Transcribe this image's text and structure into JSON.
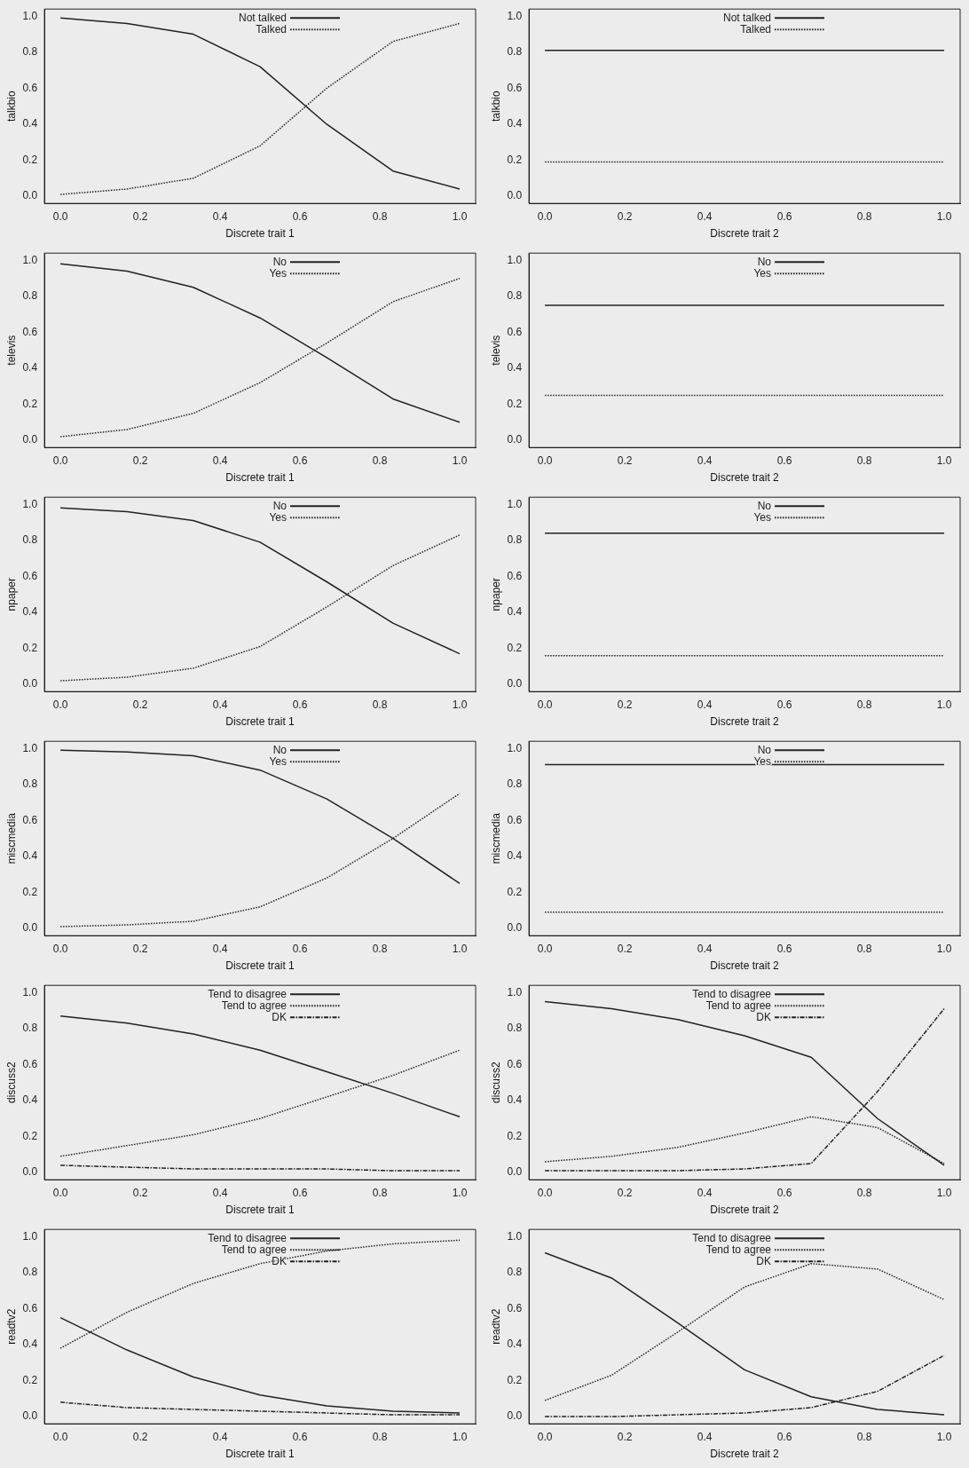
{
  "chart_data": [
    {
      "type": "line",
      "xlabel": "Discrete trait 1",
      "ylabel": "talkbio",
      "x": [
        0,
        0.167,
        0.333,
        0.5,
        0.667,
        0.833,
        1
      ],
      "xlim": [
        -0.04,
        1.04
      ],
      "ylim": [
        -0.04,
        1.04
      ],
      "xticks": [
        {
          "value": 0,
          "label": "0.0"
        },
        {
          "value": 0.2,
          "label": "0.2"
        },
        {
          "value": 0.4,
          "label": "0.4"
        },
        {
          "value": 0.6,
          "label": "0.6"
        },
        {
          "value": 0.8,
          "label": "0.8"
        },
        {
          "value": 1,
          "label": "1.0"
        }
      ],
      "yticks": [
        {
          "value": 0,
          "label": "0.0"
        },
        {
          "value": 0.2,
          "label": "0.2"
        },
        {
          "value": 0.4,
          "label": "0.4"
        },
        {
          "value": 0.6,
          "label": "0.6"
        },
        {
          "value": 0.8,
          "label": "0.8"
        },
        {
          "value": 1,
          "label": "1.0"
        }
      ],
      "legend": "top",
      "marker": "none",
      "series": [
        {
          "name": "Not talked",
          "color": "#222222",
          "line_style": "solid",
          "values": [
            0.99,
            0.96,
            0.9,
            0.72,
            0.4,
            0.14,
            0.04
          ]
        },
        {
          "name": "Talked",
          "color": "#222222",
          "line_style": "dotted",
          "values": [
            0.01,
            0.04,
            0.1,
            0.28,
            0.6,
            0.86,
            0.96
          ]
        }
      ]
    },
    {
      "type": "line",
      "xlabel": "Discrete trait 2",
      "ylabel": "talkbio",
      "x": [
        0,
        0.167,
        0.333,
        0.5,
        0.667,
        0.833,
        1
      ],
      "xlim": [
        -0.04,
        1.04
      ],
      "ylim": [
        -0.04,
        1.04
      ],
      "xticks": [
        {
          "value": 0,
          "label": "0.0"
        },
        {
          "value": 0.2,
          "label": "0.2"
        },
        {
          "value": 0.4,
          "label": "0.4"
        },
        {
          "value": 0.6,
          "label": "0.6"
        },
        {
          "value": 0.8,
          "label": "0.8"
        },
        {
          "value": 1,
          "label": "1.0"
        }
      ],
      "yticks": [
        {
          "value": 0,
          "label": "0.0"
        },
        {
          "value": 0.2,
          "label": "0.2"
        },
        {
          "value": 0.4,
          "label": "0.4"
        },
        {
          "value": 0.6,
          "label": "0.6"
        },
        {
          "value": 0.8,
          "label": "0.8"
        },
        {
          "value": 1,
          "label": "1.0"
        }
      ],
      "legend": "top",
      "marker": "none",
      "series": [
        {
          "name": "Not talked",
          "color": "#222222",
          "line_style": "solid",
          "values": [
            0.81,
            0.81,
            0.81,
            0.81,
            0.81,
            0.81,
            0.81
          ]
        },
        {
          "name": "Talked",
          "color": "#222222",
          "line_style": "dotted",
          "values": [
            0.19,
            0.19,
            0.19,
            0.19,
            0.19,
            0.19,
            0.19
          ]
        }
      ]
    },
    {
      "type": "line",
      "xlabel": "Discrete trait 1",
      "ylabel": "televis",
      "x": [
        0,
        0.167,
        0.333,
        0.5,
        0.667,
        0.833,
        1
      ],
      "xlim": [
        -0.04,
        1.04
      ],
      "ylim": [
        -0.04,
        1.04
      ],
      "xticks": [
        {
          "value": 0,
          "label": "0.0"
        },
        {
          "value": 0.2,
          "label": "0.2"
        },
        {
          "value": 0.4,
          "label": "0.4"
        },
        {
          "value": 0.6,
          "label": "0.6"
        },
        {
          "value": 0.8,
          "label": "0.8"
        },
        {
          "value": 1,
          "label": "1.0"
        }
      ],
      "yticks": [
        {
          "value": 0,
          "label": "0.0"
        },
        {
          "value": 0.2,
          "label": "0.2"
        },
        {
          "value": 0.4,
          "label": "0.4"
        },
        {
          "value": 0.6,
          "label": "0.6"
        },
        {
          "value": 0.8,
          "label": "0.8"
        },
        {
          "value": 1,
          "label": "1.0"
        }
      ],
      "legend": "top",
      "marker": "none",
      "series": [
        {
          "name": "No",
          "color": "#222222",
          "line_style": "solid",
          "values": [
            0.98,
            0.94,
            0.85,
            0.68,
            0.46,
            0.23,
            0.1
          ]
        },
        {
          "name": "Yes",
          "color": "#222222",
          "line_style": "dotted",
          "values": [
            0.02,
            0.06,
            0.15,
            0.32,
            0.54,
            0.77,
            0.9
          ]
        }
      ]
    },
    {
      "type": "line",
      "xlabel": "Discrete trait 2",
      "ylabel": "televis",
      "x": [
        0,
        0.167,
        0.333,
        0.5,
        0.667,
        0.833,
        1
      ],
      "xlim": [
        -0.04,
        1.04
      ],
      "ylim": [
        -0.04,
        1.04
      ],
      "xticks": [
        {
          "value": 0,
          "label": "0.0"
        },
        {
          "value": 0.2,
          "label": "0.2"
        },
        {
          "value": 0.4,
          "label": "0.4"
        },
        {
          "value": 0.6,
          "label": "0.6"
        },
        {
          "value": 0.8,
          "label": "0.8"
        },
        {
          "value": 1,
          "label": "1.0"
        }
      ],
      "yticks": [
        {
          "value": 0,
          "label": "0.0"
        },
        {
          "value": 0.2,
          "label": "0.2"
        },
        {
          "value": 0.4,
          "label": "0.4"
        },
        {
          "value": 0.6,
          "label": "0.6"
        },
        {
          "value": 0.8,
          "label": "0.8"
        },
        {
          "value": 1,
          "label": "1.0"
        }
      ],
      "legend": "top",
      "marker": "none",
      "series": [
        {
          "name": "No",
          "color": "#222222",
          "line_style": "solid",
          "values": [
            0.75,
            0.75,
            0.75,
            0.75,
            0.75,
            0.75,
            0.75
          ]
        },
        {
          "name": "Yes",
          "color": "#222222",
          "line_style": "dotted",
          "values": [
            0.25,
            0.25,
            0.25,
            0.25,
            0.25,
            0.25,
            0.25
          ]
        }
      ]
    },
    {
      "type": "line",
      "xlabel": "Discrete trait 1",
      "ylabel": "npaper",
      "x": [
        0,
        0.167,
        0.333,
        0.5,
        0.667,
        0.833,
        1
      ],
      "xlim": [
        -0.04,
        1.04
      ],
      "ylim": [
        -0.04,
        1.04
      ],
      "xticks": [
        {
          "value": 0,
          "label": "0.0"
        },
        {
          "value": 0.2,
          "label": "0.2"
        },
        {
          "value": 0.4,
          "label": "0.4"
        },
        {
          "value": 0.6,
          "label": "0.6"
        },
        {
          "value": 0.8,
          "label": "0.8"
        },
        {
          "value": 1,
          "label": "1.0"
        }
      ],
      "yticks": [
        {
          "value": 0,
          "label": "0.0"
        },
        {
          "value": 0.2,
          "label": "0.2"
        },
        {
          "value": 0.4,
          "label": "0.4"
        },
        {
          "value": 0.6,
          "label": "0.6"
        },
        {
          "value": 0.8,
          "label": "0.8"
        },
        {
          "value": 1,
          "label": "1.0"
        }
      ],
      "legend": "top",
      "marker": "none",
      "series": [
        {
          "name": "No",
          "color": "#222222",
          "line_style": "solid",
          "values": [
            0.98,
            0.96,
            0.91,
            0.79,
            0.57,
            0.34,
            0.17
          ]
        },
        {
          "name": "Yes",
          "color": "#222222",
          "line_style": "dotted",
          "values": [
            0.02,
            0.04,
            0.09,
            0.21,
            0.43,
            0.66,
            0.83
          ]
        }
      ]
    },
    {
      "type": "line",
      "xlabel": "Discrete trait 2",
      "ylabel": "npaper",
      "x": [
        0,
        0.167,
        0.333,
        0.5,
        0.667,
        0.833,
        1
      ],
      "xlim": [
        -0.04,
        1.04
      ],
      "ylim": [
        -0.04,
        1.04
      ],
      "xticks": [
        {
          "value": 0,
          "label": "0.0"
        },
        {
          "value": 0.2,
          "label": "0.2"
        },
        {
          "value": 0.4,
          "label": "0.4"
        },
        {
          "value": 0.6,
          "label": "0.6"
        },
        {
          "value": 0.8,
          "label": "0.8"
        },
        {
          "value": 1,
          "label": "1.0"
        }
      ],
      "yticks": [
        {
          "value": 0,
          "label": "0.0"
        },
        {
          "value": 0.2,
          "label": "0.2"
        },
        {
          "value": 0.4,
          "label": "0.4"
        },
        {
          "value": 0.6,
          "label": "0.6"
        },
        {
          "value": 0.8,
          "label": "0.8"
        },
        {
          "value": 1,
          "label": "1.0"
        }
      ],
      "legend": "top",
      "marker": "none",
      "series": [
        {
          "name": "No",
          "color": "#222222",
          "line_style": "solid",
          "values": [
            0.84,
            0.84,
            0.84,
            0.84,
            0.84,
            0.84,
            0.84
          ]
        },
        {
          "name": "Yes",
          "color": "#222222",
          "line_style": "dotted",
          "values": [
            0.16,
            0.16,
            0.16,
            0.16,
            0.16,
            0.16,
            0.16
          ]
        }
      ]
    },
    {
      "type": "line",
      "xlabel": "Discrete trait 1",
      "ylabel": "miscmedia",
      "x": [
        0,
        0.167,
        0.333,
        0.5,
        0.667,
        0.833,
        1
      ],
      "xlim": [
        -0.04,
        1.04
      ],
      "ylim": [
        -0.04,
        1.04
      ],
      "xticks": [
        {
          "value": 0,
          "label": "0.0"
        },
        {
          "value": 0.2,
          "label": "0.2"
        },
        {
          "value": 0.4,
          "label": "0.4"
        },
        {
          "value": 0.6,
          "label": "0.6"
        },
        {
          "value": 0.8,
          "label": "0.8"
        },
        {
          "value": 1,
          "label": "1.0"
        }
      ],
      "yticks": [
        {
          "value": 0,
          "label": "0.0"
        },
        {
          "value": 0.2,
          "label": "0.2"
        },
        {
          "value": 0.4,
          "label": "0.4"
        },
        {
          "value": 0.6,
          "label": "0.6"
        },
        {
          "value": 0.8,
          "label": "0.8"
        },
        {
          "value": 1,
          "label": "1.0"
        }
      ],
      "legend": "top",
      "marker": "none",
      "series": [
        {
          "name": "No",
          "color": "#222222",
          "line_style": "solid",
          "values": [
            0.99,
            0.98,
            0.96,
            0.88,
            0.72,
            0.5,
            0.25
          ]
        },
        {
          "name": "Yes",
          "color": "#222222",
          "line_style": "dotted",
          "values": [
            0.01,
            0.02,
            0.04,
            0.12,
            0.28,
            0.5,
            0.75
          ]
        }
      ]
    },
    {
      "type": "line",
      "xlabel": "Discrete trait 2",
      "ylabel": "miscmedia",
      "x": [
        0,
        0.167,
        0.333,
        0.5,
        0.667,
        0.833,
        1
      ],
      "xlim": [
        -0.04,
        1.04
      ],
      "ylim": [
        -0.04,
        1.04
      ],
      "xticks": [
        {
          "value": 0,
          "label": "0.0"
        },
        {
          "value": 0.2,
          "label": "0.2"
        },
        {
          "value": 0.4,
          "label": "0.4"
        },
        {
          "value": 0.6,
          "label": "0.6"
        },
        {
          "value": 0.8,
          "label": "0.8"
        },
        {
          "value": 1,
          "label": "1.0"
        }
      ],
      "yticks": [
        {
          "value": 0,
          "label": "0.0"
        },
        {
          "value": 0.2,
          "label": "0.2"
        },
        {
          "value": 0.4,
          "label": "0.4"
        },
        {
          "value": 0.6,
          "label": "0.6"
        },
        {
          "value": 0.8,
          "label": "0.8"
        },
        {
          "value": 1,
          "label": "1.0"
        }
      ],
      "legend": "top",
      "marker": "none",
      "series": [
        {
          "name": "No",
          "color": "#222222",
          "line_style": "solid",
          "values": [
            0.91,
            0.91,
            0.91,
            0.91,
            0.91,
            0.91,
            0.91
          ]
        },
        {
          "name": "Yes",
          "color": "#222222",
          "line_style": "dotted",
          "values": [
            0.09,
            0.09,
            0.09,
            0.09,
            0.09,
            0.09,
            0.09
          ]
        }
      ]
    },
    {
      "type": "line",
      "xlabel": "Discrete trait 1",
      "ylabel": "discuss2",
      "x": [
        0,
        0.167,
        0.333,
        0.5,
        0.667,
        0.833,
        1
      ],
      "xlim": [
        -0.04,
        1.04
      ],
      "ylim": [
        -0.04,
        1.04
      ],
      "xticks": [
        {
          "value": 0,
          "label": "0.0"
        },
        {
          "value": 0.2,
          "label": "0.2"
        },
        {
          "value": 0.4,
          "label": "0.4"
        },
        {
          "value": 0.6,
          "label": "0.6"
        },
        {
          "value": 0.8,
          "label": "0.8"
        },
        {
          "value": 1,
          "label": "1.0"
        }
      ],
      "yticks": [
        {
          "value": 0,
          "label": "0.0"
        },
        {
          "value": 0.2,
          "label": "0.2"
        },
        {
          "value": 0.4,
          "label": "0.4"
        },
        {
          "value": 0.6,
          "label": "0.6"
        },
        {
          "value": 0.8,
          "label": "0.8"
        },
        {
          "value": 1,
          "label": "1.0"
        }
      ],
      "legend": "top",
      "marker": "none",
      "series": [
        {
          "name": "Tend to disagree",
          "color": "#222222",
          "line_style": "solid",
          "values": [
            0.87,
            0.83,
            0.77,
            0.68,
            0.56,
            0.44,
            0.31
          ]
        },
        {
          "name": "Tend to agree",
          "color": "#222222",
          "line_style": "dotted",
          "values": [
            0.09,
            0.15,
            0.21,
            0.3,
            0.42,
            0.54,
            0.68
          ]
        },
        {
          "name": "DK",
          "color": "#222222",
          "line_style": "dashdot",
          "values": [
            0.04,
            0.03,
            0.02,
            0.02,
            0.02,
            0.01,
            0.01
          ]
        }
      ]
    },
    {
      "type": "line",
      "xlabel": "Discrete trait 2",
      "ylabel": "discuss2",
      "x": [
        0,
        0.167,
        0.333,
        0.5,
        0.667,
        0.833,
        1
      ],
      "xlim": [
        -0.04,
        1.04
      ],
      "ylim": [
        -0.04,
        1.04
      ],
      "xticks": [
        {
          "value": 0,
          "label": "0.0"
        },
        {
          "value": 0.2,
          "label": "0.2"
        },
        {
          "value": 0.4,
          "label": "0.4"
        },
        {
          "value": 0.6,
          "label": "0.6"
        },
        {
          "value": 0.8,
          "label": "0.8"
        },
        {
          "value": 1,
          "label": "1.0"
        }
      ],
      "yticks": [
        {
          "value": 0,
          "label": "0.0"
        },
        {
          "value": 0.2,
          "label": "0.2"
        },
        {
          "value": 0.4,
          "label": "0.4"
        },
        {
          "value": 0.6,
          "label": "0.6"
        },
        {
          "value": 0.8,
          "label": "0.8"
        },
        {
          "value": 1,
          "label": "1.0"
        }
      ],
      "legend": "top",
      "marker": "none",
      "series": [
        {
          "name": "Tend to disagree",
          "color": "#222222",
          "line_style": "solid",
          "values": [
            0.95,
            0.91,
            0.85,
            0.76,
            0.64,
            0.3,
            0.04
          ]
        },
        {
          "name": "Tend to agree",
          "color": "#222222",
          "line_style": "dotted",
          "values": [
            0.06,
            0.09,
            0.14,
            0.22,
            0.31,
            0.25,
            0.05
          ]
        },
        {
          "name": "DK",
          "color": "#222222",
          "line_style": "dashdot",
          "values": [
            0.01,
            0.01,
            0.01,
            0.02,
            0.05,
            0.45,
            0.91
          ]
        }
      ]
    },
    {
      "type": "line",
      "xlabel": "Discrete trait 1",
      "ylabel": "readtv2",
      "x": [
        0,
        0.167,
        0.333,
        0.5,
        0.667,
        0.833,
        1
      ],
      "xlim": [
        -0.04,
        1.04
      ],
      "ylim": [
        -0.04,
        1.04
      ],
      "xticks": [
        {
          "value": 0,
          "label": "0.0"
        },
        {
          "value": 0.2,
          "label": "0.2"
        },
        {
          "value": 0.4,
          "label": "0.4"
        },
        {
          "value": 0.6,
          "label": "0.6"
        },
        {
          "value": 0.8,
          "label": "0.8"
        },
        {
          "value": 1,
          "label": "1.0"
        }
      ],
      "yticks": [
        {
          "value": 0,
          "label": "0.0"
        },
        {
          "value": 0.2,
          "label": "0.2"
        },
        {
          "value": 0.4,
          "label": "0.4"
        },
        {
          "value": 0.6,
          "label": "0.6"
        },
        {
          "value": 0.8,
          "label": "0.8"
        },
        {
          "value": 1,
          "label": "1.0"
        }
      ],
      "legend": "top",
      "marker": "none",
      "series": [
        {
          "name": "Tend to disagree",
          "color": "#222222",
          "line_style": "solid",
          "values": [
            0.55,
            0.37,
            0.22,
            0.12,
            0.06,
            0.03,
            0.02
          ]
        },
        {
          "name": "Tend to agree",
          "color": "#222222",
          "line_style": "dotted",
          "values": [
            0.38,
            0.58,
            0.74,
            0.85,
            0.92,
            0.96,
            0.98
          ]
        },
        {
          "name": "DK",
          "color": "#222222",
          "line_style": "dashdot",
          "values": [
            0.08,
            0.05,
            0.04,
            0.03,
            0.02,
            0.01,
            0.01
          ]
        }
      ]
    },
    {
      "type": "line",
      "xlabel": "Discrete trait 2",
      "ylabel": "readtv2",
      "x": [
        0,
        0.167,
        0.333,
        0.5,
        0.667,
        0.833,
        1
      ],
      "xlim": [
        -0.04,
        1.04
      ],
      "ylim": [
        -0.04,
        1.04
      ],
      "xticks": [
        {
          "value": 0,
          "label": "0.0"
        },
        {
          "value": 0.2,
          "label": "0.2"
        },
        {
          "value": 0.4,
          "label": "0.4"
        },
        {
          "value": 0.6,
          "label": "0.6"
        },
        {
          "value": 0.8,
          "label": "0.8"
        },
        {
          "value": 1,
          "label": "1.0"
        }
      ],
      "yticks": [
        {
          "value": 0,
          "label": "0.0"
        },
        {
          "value": 0.2,
          "label": "0.2"
        },
        {
          "value": 0.4,
          "label": "0.4"
        },
        {
          "value": 0.6,
          "label": "0.6"
        },
        {
          "value": 0.8,
          "label": "0.8"
        },
        {
          "value": 1,
          "label": "1.0"
        }
      ],
      "legend": "top",
      "marker": "none",
      "series": [
        {
          "name": "Tend to disagree",
          "color": "#222222",
          "line_style": "solid",
          "values": [
            0.91,
            0.77,
            0.52,
            0.26,
            0.11,
            0.04,
            0.01
          ]
        },
        {
          "name": "Tend to agree",
          "color": "#222222",
          "line_style": "dotted",
          "values": [
            0.09,
            0.23,
            0.47,
            0.72,
            0.85,
            0.82,
            0.65
          ]
        },
        {
          "name": "DK",
          "color": "#222222",
          "line_style": "dashdot",
          "values": [
            0.0,
            0.0,
            0.01,
            0.02,
            0.05,
            0.14,
            0.34
          ]
        }
      ]
    }
  ]
}
